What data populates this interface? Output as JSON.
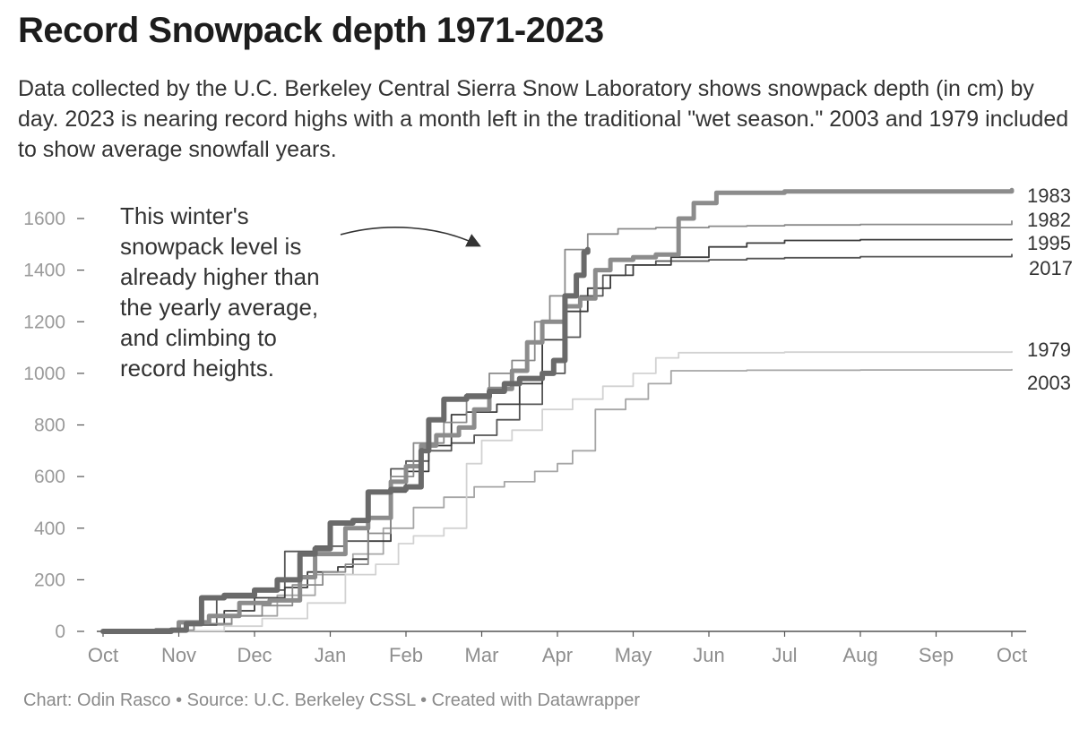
{
  "chart_data": {
    "type": "line",
    "title": "Record Snowpack depth 1971-2023",
    "subtitle": "Data collected by the U.C. Berkeley Central Sierra Snow Laboratory shows snowpack depth (in cm) by day. 2023 is nearing record highs with a month left in the traditional \"wet season.\" 2003 and 1979 included to show average snowfall years.",
    "xlabel": "",
    "ylabel": "",
    "x_ticks": [
      "Oct",
      "Nov",
      "Dec",
      "Jan",
      "Feb",
      "Mar",
      "Apr",
      "May",
      "Jun",
      "Jul",
      "Aug",
      "Sep",
      "Oct"
    ],
    "y_ticks": [
      0,
      200,
      400,
      600,
      800,
      1000,
      1200,
      1400,
      1600
    ],
    "ylim": [
      0,
      1700
    ],
    "xlim": [
      0,
      12.2
    ],
    "annotation": [
      "This winter's",
      "snowpack level is",
      "already higher than",
      "the yearly average,",
      "and climbing to",
      "record heights."
    ],
    "series": [
      {
        "name": "2003",
        "color": "#a6a6a6",
        "width": 1.8,
        "points": [
          [
            0,
            0
          ],
          [
            0.6,
            2
          ],
          [
            1.2,
            25
          ],
          [
            1.7,
            60
          ],
          [
            2.3,
            140
          ],
          [
            2.8,
            220
          ],
          [
            3.3,
            300
          ],
          [
            3.7,
            400
          ],
          [
            4.1,
            480
          ],
          [
            4.5,
            520
          ],
          [
            4.9,
            560
          ],
          [
            5.3,
            580
          ],
          [
            5.7,
            620
          ],
          [
            6.0,
            650
          ],
          [
            6.2,
            700
          ],
          [
            6.5,
            860
          ],
          [
            6.9,
            900
          ],
          [
            7.2,
            960
          ],
          [
            7.5,
            1010
          ],
          [
            8.5,
            1012
          ],
          [
            10,
            1013
          ],
          [
            12.2,
            1015
          ]
        ]
      },
      {
        "name": "1979",
        "color": "#d2d2d2",
        "width": 1.8,
        "points": [
          [
            0,
            0
          ],
          [
            1.1,
            2
          ],
          [
            1.6,
            20
          ],
          [
            2.1,
            50
          ],
          [
            2.7,
            110
          ],
          [
            3.2,
            220
          ],
          [
            3.6,
            260
          ],
          [
            3.9,
            340
          ],
          [
            4.1,
            370
          ],
          [
            4.5,
            400
          ],
          [
            4.8,
            650
          ],
          [
            5.0,
            740
          ],
          [
            5.4,
            780
          ],
          [
            5.8,
            860
          ],
          [
            6.2,
            900
          ],
          [
            6.6,
            950
          ],
          [
            7.0,
            1000
          ],
          [
            7.3,
            1060
          ],
          [
            7.6,
            1080
          ],
          [
            9,
            1082
          ],
          [
            12.2,
            1084
          ]
        ]
      },
      {
        "name": "2017",
        "color": "#555555",
        "width": 1.8,
        "points": [
          [
            0,
            0
          ],
          [
            0.7,
            4
          ],
          [
            1.1,
            25
          ],
          [
            1.5,
            130
          ],
          [
            2.0,
            160
          ],
          [
            2.4,
            310
          ],
          [
            2.8,
            330
          ],
          [
            3.2,
            350
          ],
          [
            3.5,
            440
          ],
          [
            3.8,
            630
          ],
          [
            4.0,
            660
          ],
          [
            4.3,
            700
          ],
          [
            4.6,
            730
          ],
          [
            4.9,
            760
          ],
          [
            5.2,
            820
          ],
          [
            5.5,
            880
          ],
          [
            5.8,
            1000
          ],
          [
            6.1,
            1140
          ],
          [
            6.3,
            1300
          ],
          [
            6.6,
            1380
          ],
          [
            6.9,
            1420
          ],
          [
            7.3,
            1435
          ],
          [
            8.0,
            1440
          ],
          [
            8.5,
            1445
          ],
          [
            9.0,
            1448
          ],
          [
            10,
            1452
          ],
          [
            12.2,
            1460
          ]
        ]
      },
      {
        "name": "1995",
        "color": "#3d3d3d",
        "width": 1.8,
        "points": [
          [
            0,
            0
          ],
          [
            0.7,
            4
          ],
          [
            1.1,
            30
          ],
          [
            1.6,
            80
          ],
          [
            2.0,
            130
          ],
          [
            2.4,
            170
          ],
          [
            2.7,
            230
          ],
          [
            3.1,
            250
          ],
          [
            3.3,
            280
          ],
          [
            3.5,
            350
          ],
          [
            3.8,
            540
          ],
          [
            4.0,
            620
          ],
          [
            4.3,
            720
          ],
          [
            4.6,
            840
          ],
          [
            4.8,
            850
          ],
          [
            5.2,
            880
          ],
          [
            5.5,
            960
          ],
          [
            5.8,
            1130
          ],
          [
            6.1,
            1240
          ],
          [
            6.4,
            1330
          ],
          [
            6.7,
            1380
          ],
          [
            7.0,
            1420
          ],
          [
            7.5,
            1450
          ],
          [
            8.0,
            1490
          ],
          [
            8.5,
            1505
          ],
          [
            9.0,
            1515
          ],
          [
            10,
            1518
          ],
          [
            12.2,
            1520
          ]
        ]
      },
      {
        "name": "1982",
        "color": "#8a8a8a",
        "width": 1.8,
        "points": [
          [
            0,
            0
          ],
          [
            0.7,
            5
          ],
          [
            1.2,
            30
          ],
          [
            1.7,
            60
          ],
          [
            2.1,
            100
          ],
          [
            2.5,
            180
          ],
          [
            2.9,
            230
          ],
          [
            3.2,
            260
          ],
          [
            3.5,
            380
          ],
          [
            3.8,
            600
          ],
          [
            4.1,
            730
          ],
          [
            4.5,
            810
          ],
          [
            4.8,
            920
          ],
          [
            5.1,
            1000
          ],
          [
            5.4,
            1050
          ],
          [
            5.7,
            1200
          ],
          [
            5.9,
            1300
          ],
          [
            6.1,
            1480
          ],
          [
            6.4,
            1540
          ],
          [
            6.8,
            1560
          ],
          [
            7.3,
            1565
          ],
          [
            8.0,
            1570
          ],
          [
            8.5,
            1572
          ],
          [
            9.0,
            1575
          ],
          [
            10,
            1577
          ],
          [
            12,
            1578
          ],
          [
            12.2,
            1590
          ]
        ]
      },
      {
        "name": "1983",
        "color": "#8c8c8c",
        "width": 5,
        "points": [
          [
            0,
            0
          ],
          [
            0.7,
            5
          ],
          [
            1.0,
            35
          ],
          [
            1.4,
            60
          ],
          [
            1.8,
            110
          ],
          [
            2.2,
            120
          ],
          [
            2.6,
            210
          ],
          [
            2.8,
            300
          ],
          [
            3.2,
            400
          ],
          [
            3.5,
            440
          ],
          [
            3.8,
            580
          ],
          [
            4.0,
            640
          ],
          [
            4.2,
            720
          ],
          [
            4.4,
            760
          ],
          [
            4.7,
            790
          ],
          [
            4.9,
            860
          ],
          [
            5.1,
            940
          ],
          [
            5.4,
            1010
          ],
          [
            5.6,
            1120
          ],
          [
            5.8,
            1200
          ],
          [
            6.1,
            1260
          ],
          [
            6.3,
            1290
          ],
          [
            6.5,
            1400
          ],
          [
            6.7,
            1440
          ],
          [
            7.0,
            1450
          ],
          [
            7.3,
            1460
          ],
          [
            7.6,
            1600
          ],
          [
            7.8,
            1660
          ],
          [
            8.1,
            1700
          ],
          [
            9,
            1705
          ],
          [
            12.2,
            1710
          ]
        ]
      },
      {
        "name": "2023",
        "color": "#6a6a6a",
        "width": 6,
        "points": [
          [
            0,
            0
          ],
          [
            0.9,
            5
          ],
          [
            1.1,
            30
          ],
          [
            1.3,
            130
          ],
          [
            1.6,
            140
          ],
          [
            2.0,
            160
          ],
          [
            2.3,
            200
          ],
          [
            2.6,
            300
          ],
          [
            2.8,
            320
          ],
          [
            3.0,
            420
          ],
          [
            3.3,
            430
          ],
          [
            3.5,
            540
          ],
          [
            3.8,
            550
          ],
          [
            4.0,
            560
          ],
          [
            4.2,
            700
          ],
          [
            4.3,
            820
          ],
          [
            4.5,
            900
          ],
          [
            4.8,
            910
          ],
          [
            5.1,
            930
          ],
          [
            5.3,
            960
          ],
          [
            5.5,
            980
          ],
          [
            5.8,
            1000
          ],
          [
            5.95,
            1050
          ],
          [
            6.1,
            1300
          ],
          [
            6.25,
            1380
          ],
          [
            6.35,
            1470
          ],
          [
            6.4,
            1480
          ]
        ]
      }
    ]
  },
  "footer": {
    "credit": "Chart: Odin Rasco • Source: U.C. Berkeley CSSL • Created with Datawrapper"
  }
}
